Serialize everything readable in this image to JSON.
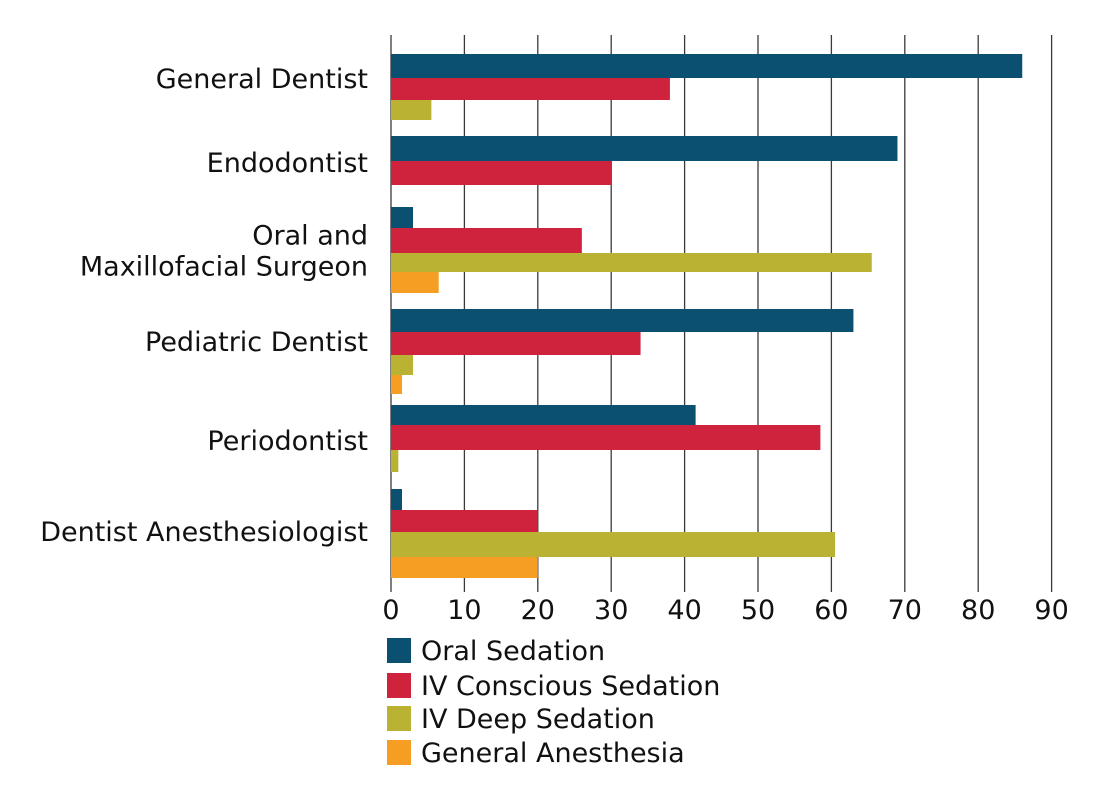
{
  "chart_data": {
    "type": "bar",
    "orientation": "horizontal",
    "title": "",
    "xlabel": "",
    "ylabel": "",
    "xlim": [
      0,
      90
    ],
    "x_ticks": [
      "0",
      "10",
      "20",
      "30",
      "40",
      "50",
      "60",
      "70",
      "80",
      "90"
    ],
    "grid": "vertical",
    "legend_position": "bottom",
    "categories": [
      "General Dentist",
      "Endodontist",
      "Oral and Maxillofacial Surgeon",
      "Pediatric Dentist",
      "Periodontist",
      "Dentist Anesthesiologist"
    ],
    "category_label_lines": [
      [
        "General Dentist"
      ],
      [
        "Endodontist"
      ],
      [
        "Oral and ",
        "Maxillofacial Surgeon"
      ],
      [
        "Pediatric Dentist"
      ],
      [
        "Periodontist"
      ],
      [
        "Dentist Anesthesiologist"
      ]
    ],
    "series": [
      {
        "name": "Oral Sedation",
        "color": "#0b4f71",
        "values": [
          86,
          69,
          3,
          63,
          41.5,
          1.5
        ]
      },
      {
        "name": "IV Conscious Sedation",
        "color": "#cf223c",
        "values": [
          38,
          30,
          26,
          34,
          58.5,
          20
        ]
      },
      {
        "name": "IV Deep Sedation",
        "color": "#bab232",
        "values": [
          5.5,
          null,
          65.5,
          3,
          1,
          60.5
        ]
      },
      {
        "name": "General Anesthesia",
        "color": "#f59e23",
        "values": [
          null,
          null,
          6.5,
          1.5,
          null,
          20
        ]
      }
    ]
  }
}
